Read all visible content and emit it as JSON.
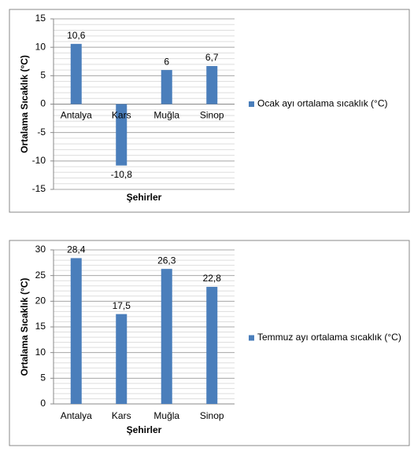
{
  "chart_data": [
    {
      "type": "bar",
      "x_label": "Şehirler",
      "y_label": "Ortalama Sıcaklık (°C)",
      "categories": [
        "Antalya",
        "Kars",
        "Muğla",
        "Sinop"
      ],
      "series": [
        {
          "name": "Ocak ayı ortalama sıcaklık (°C)",
          "color": "#4a7ebb",
          "values": [
            10.6,
            -10.8,
            6,
            6.7
          ],
          "value_labels": [
            "10,6",
            "-10,8",
            "6",
            "6,7"
          ]
        }
      ],
      "ylim": [
        -15,
        15
      ],
      "yticks": [
        -15,
        -10,
        -5,
        0,
        5,
        10,
        15
      ],
      "grid": true,
      "minor_grid": true,
      "legend": "right"
    },
    {
      "type": "bar",
      "x_label": "Şehirler",
      "y_label": "Ortalama Sıcaklık (°C)",
      "categories": [
        "Antalya",
        "Kars",
        "Muğla",
        "Sinop"
      ],
      "series": [
        {
          "name": "Temmuz ayı ortalama sıcaklık (°C)",
          "color": "#4a7ebb",
          "values": [
            28.4,
            17.5,
            26.3,
            22.8
          ],
          "value_labels": [
            "28,4",
            "17,5",
            "26,3",
            "22,8"
          ]
        }
      ],
      "ylim": [
        0,
        30
      ],
      "yticks": [
        0,
        5,
        10,
        15,
        20,
        25,
        30
      ],
      "grid": true,
      "minor_grid": true,
      "legend": "right"
    }
  ]
}
